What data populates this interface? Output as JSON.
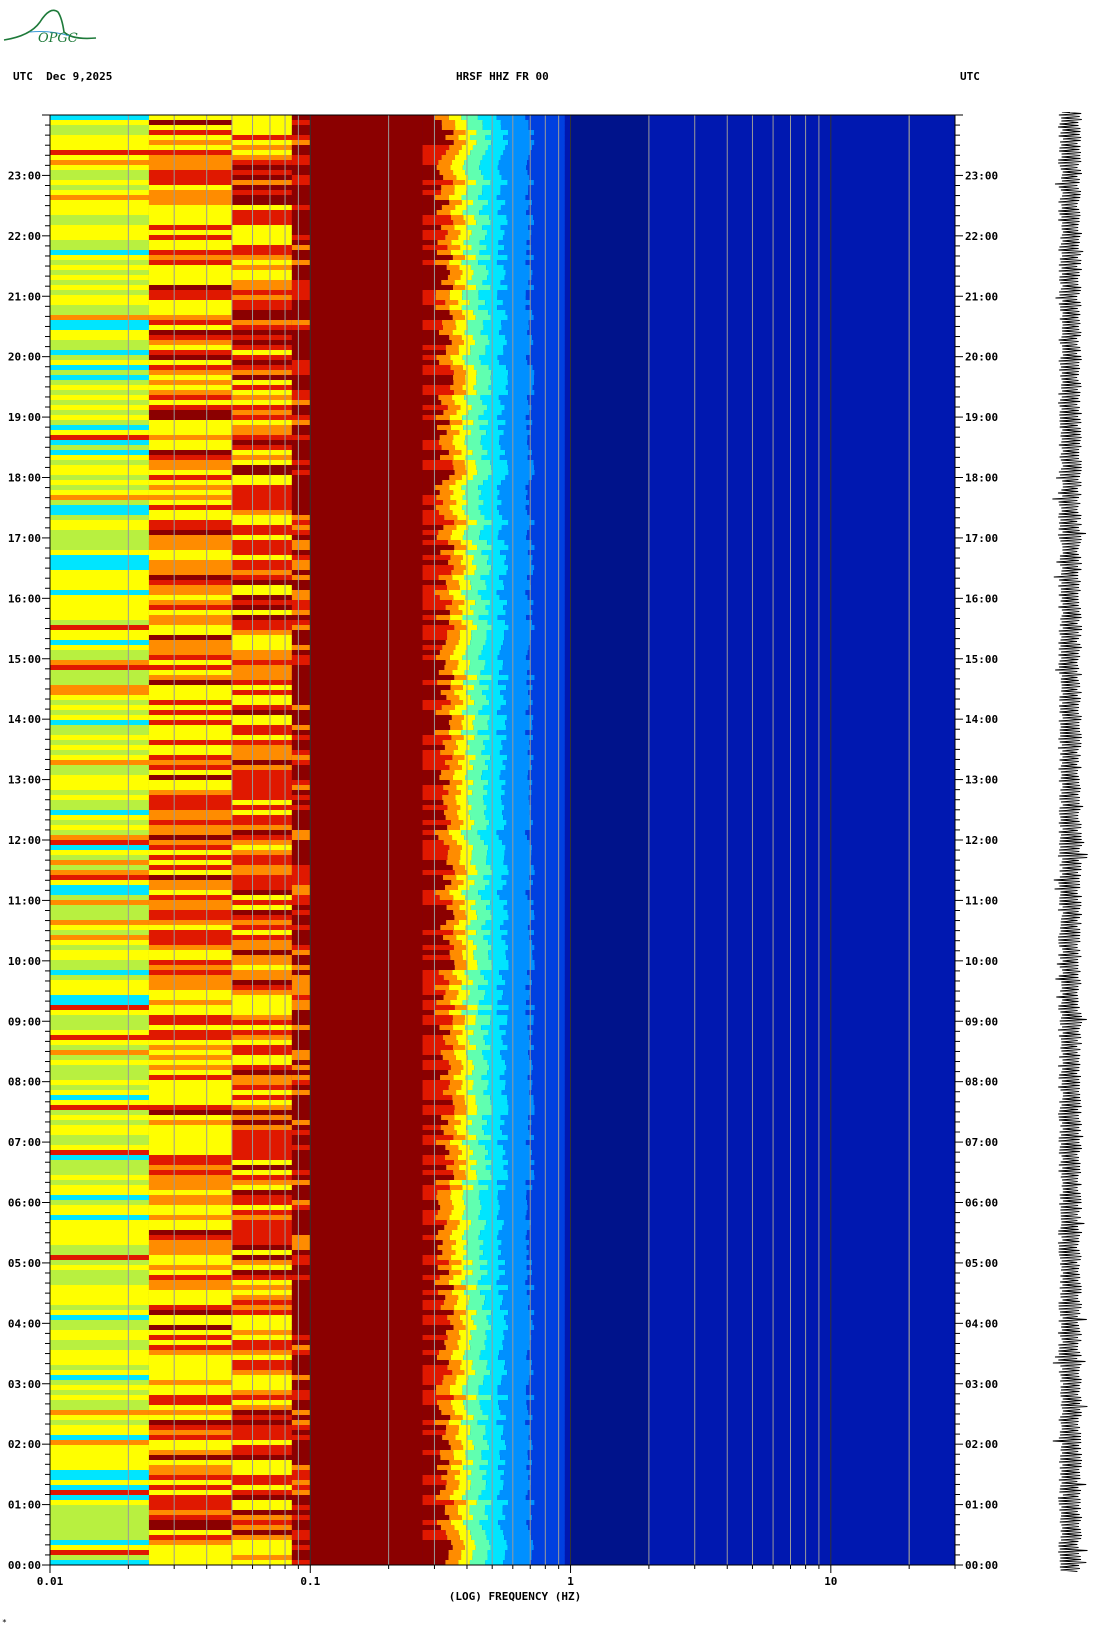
{
  "header": {
    "left": "UTC  Dec 9,2025",
    "center": "HRSF HHZ FR 00",
    "right": "UTC"
  },
  "logo": {
    "text": "OPGC",
    "color": "#1e7a3a"
  },
  "colors": {
    "dark_red": "#8b0000",
    "red": "#e01800",
    "orange": "#ff8c00",
    "yellow": "#ffff00",
    "cyan": "#00e5ff",
    "blue": "#0018b0",
    "dark_blue": "#00106e"
  },
  "chart_data": {
    "type": "heatmap",
    "title": "HRSF HHZ FR 00",
    "xlabel": "(LOG) FREQUENCY (HZ)",
    "x_scale": "log",
    "xlim": [
      0.01,
      30
    ],
    "x_tick_labels": [
      "0.01",
      "0.1",
      "1",
      "10"
    ],
    "x_tick_values": [
      0.01,
      0.1,
      1,
      10
    ],
    "ylabel": "UTC",
    "y_tick_labels": [
      "00:00",
      "01:00",
      "02:00",
      "03:00",
      "04:00",
      "05:00",
      "06:00",
      "07:00",
      "08:00",
      "09:00",
      "10:00",
      "11:00",
      "12:00",
      "13:00",
      "14:00",
      "15:00",
      "16:00",
      "17:00",
      "18:00",
      "19:00",
      "20:00",
      "21:00",
      "22:00",
      "23:00"
    ],
    "ylim_hours": [
      0,
      24
    ],
    "bands": [
      {
        "f_from": 0.01,
        "f_to": 0.024,
        "dominant": "yellow-green with cyan streaks"
      },
      {
        "f_from": 0.024,
        "f_to": 0.05,
        "dominant": "yellow/orange with red streaks"
      },
      {
        "f_from": 0.05,
        "f_to": 0.085,
        "dominant": "orange/red streaks"
      },
      {
        "f_from": 0.085,
        "f_to": 0.27,
        "dominant": "dark red"
      },
      {
        "f_from": 0.27,
        "f_to": 0.45,
        "dominant": "red to yellow to cyan transition"
      },
      {
        "f_from": 0.45,
        "f_to": 1.0,
        "dominant": "blue"
      },
      {
        "f_from": 1.0,
        "f_to": 30,
        "dominant": "deep blue"
      }
    ]
  },
  "seismogram": {
    "label": "trace"
  },
  "footer_mark": "*"
}
